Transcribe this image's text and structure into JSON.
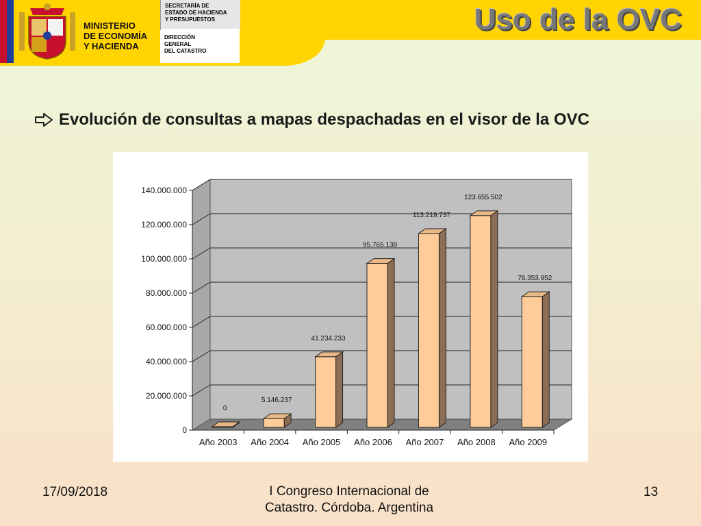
{
  "header": {
    "ministry_lines": [
      "MINISTERIO",
      "DE ECONOMÍA",
      "Y HACIENDA"
    ],
    "secretaria_lines": [
      "SECRETARÍA DE",
      "ESTADO DE HACIENDA",
      "Y PRESUPUESTOS"
    ],
    "direccion_lines": [
      "DIRECCIÓN",
      "GENERAL",
      "DEL CATASTRO"
    ],
    "title": "Uso de la OVC"
  },
  "bullet": {
    "text": "Evolución de consultas a mapas despachadas en el visor de la OVC"
  },
  "chart_data": {
    "type": "bar",
    "categories": [
      "Año 2003",
      "Año 2004",
      "Año 2005",
      "Año 2006",
      "Año 2007",
      "Año 2008",
      "Año 2009"
    ],
    "values": [
      0,
      5146237,
      41234233,
      95765138,
      113219737,
      123655502,
      76353952
    ],
    "data_labels": [
      "0",
      "5.146.237",
      "41.234.233",
      "95.765.138",
      "113.219.737",
      "123.655.502",
      "76.353.952"
    ],
    "y_ticks": [
      0,
      20000000,
      40000000,
      60000000,
      80000000,
      100000000,
      120000000,
      140000000
    ],
    "y_tick_labels": [
      "0",
      "20.000.000",
      "40.000.000",
      "60.000.000",
      "80.000.000",
      "100.000.000",
      "120.000.000",
      "140.000.000"
    ],
    "ylim": [
      0,
      140000000
    ],
    "grid": true,
    "style": "3d",
    "colors": {
      "bar_front": "#ffcc99",
      "bar_side": "#8c6d55",
      "bar_top": "#e8b887",
      "plot_back": "#c0c0c0",
      "plot_side": "#a8a8a8",
      "floor": "#808080"
    }
  },
  "footer": {
    "date": "17/09/2018",
    "event_lines": [
      "I Congreso Internacional de",
      "Catastro. Córdoba. Argentina"
    ],
    "page": "13"
  }
}
